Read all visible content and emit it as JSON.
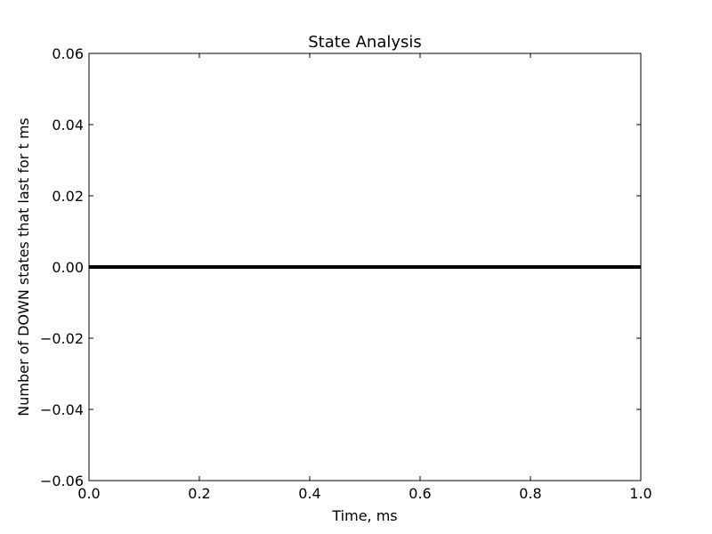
{
  "chart_data": {
    "type": "line",
    "title": "State Analysis",
    "xlabel": "Time, ms",
    "ylabel": "Number of DOWN states that last for t ms",
    "xlim": [
      0.0,
      1.0
    ],
    "ylim": [
      -0.06,
      0.06
    ],
    "xticks": [
      0.0,
      0.2,
      0.4,
      0.6,
      0.8,
      1.0
    ],
    "yticks": [
      -0.06,
      -0.04,
      -0.02,
      0.0,
      0.02,
      0.04,
      0.06
    ],
    "x_tick_labels": [
      "0.0",
      "0.2",
      "0.4",
      "0.6",
      "0.8",
      "1.0"
    ],
    "y_tick_labels": [
      "−0.06",
      "−0.04",
      "−0.02",
      "0.00",
      "0.02",
      "0.04",
      "0.06"
    ],
    "grid": false,
    "series": [
      {
        "x": [
          0.0,
          1.0
        ],
        "y": [
          0.0,
          0.0
        ],
        "color": "#000000"
      }
    ]
  }
}
